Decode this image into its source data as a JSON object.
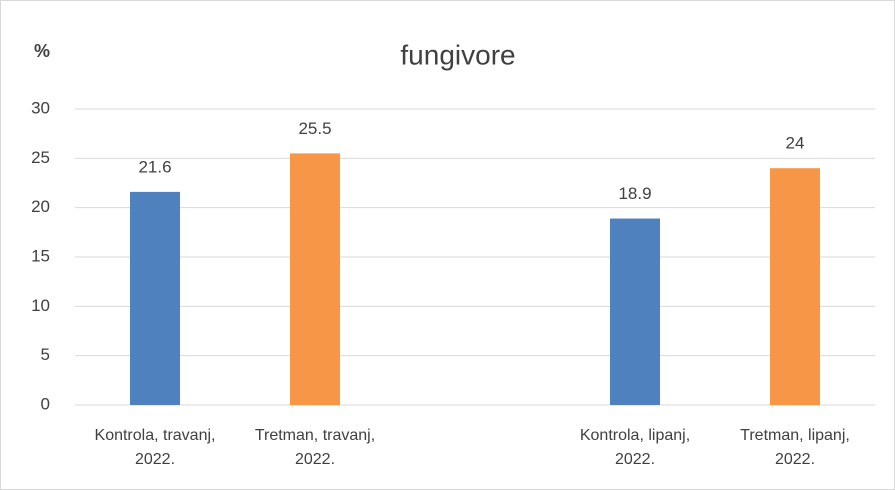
{
  "chart_data": {
    "type": "bar",
    "title": "fungivore",
    "y_label": "%",
    "categories": [
      "Kontrola, travanj, 2022.",
      "Tretman, travanj, 2022.",
      null,
      "Kontrola, lipanj, 2022.",
      "Tretman, lipanj, 2022."
    ],
    "values": [
      21.6,
      25.5,
      null,
      18.9,
      24
    ],
    "colors": [
      "#4e81bd",
      "#f79646",
      null,
      "#4e81bd",
      "#f79646"
    ],
    "ylim": [
      0,
      30
    ],
    "yticks": [
      0,
      5,
      10,
      15,
      20,
      25,
      30
    ],
    "grid": true
  }
}
